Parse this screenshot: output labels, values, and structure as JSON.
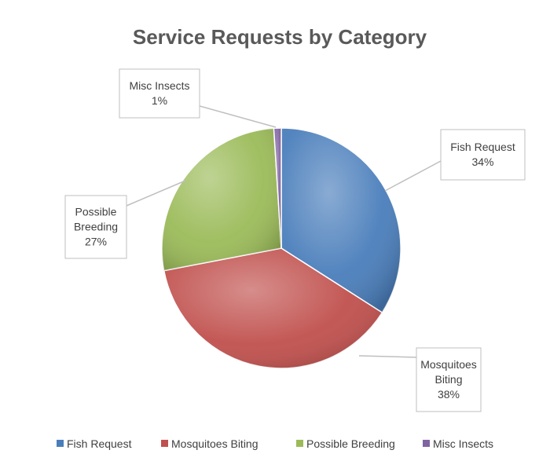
{
  "chart_data": {
    "type": "pie",
    "title": "Service Requests by Category",
    "categories": [
      "Fish Request",
      "Mosquitoes Biting",
      "Possible Breeding",
      "Misc Insects"
    ],
    "values": [
      34,
      38,
      27,
      1
    ],
    "percent_labels": [
      "34%",
      "38%",
      "27%",
      "1%"
    ],
    "colors": [
      "#4A7EBB",
      "#C0504D",
      "#9BBB59",
      "#8064A2"
    ],
    "callouts": [
      {
        "lines": [
          "Fish Request",
          "34%"
        ]
      },
      {
        "lines": [
          "Mosquitoes",
          "Biting",
          "38%"
        ]
      },
      {
        "lines": [
          "Possible",
          "Breeding",
          "27%"
        ]
      },
      {
        "lines": [
          "Misc Insects",
          "1%"
        ]
      }
    ],
    "legend": {
      "position": "bottom",
      "items": [
        "Fish Request",
        "Mosquitoes Biting",
        "Possible Breeding",
        "Misc Insects"
      ]
    }
  }
}
